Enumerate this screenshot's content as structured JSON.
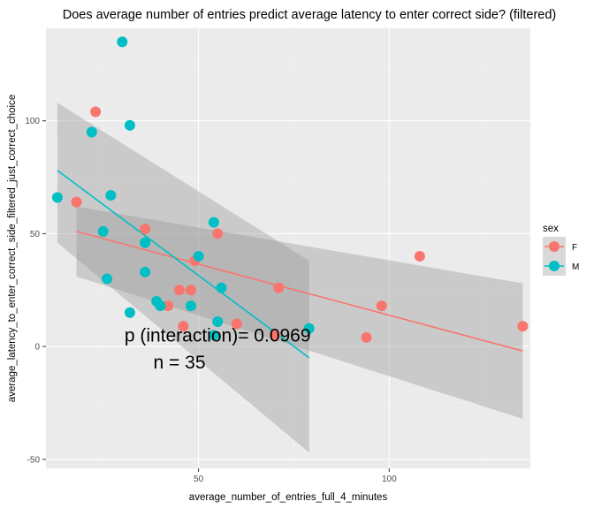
{
  "chart_data": {
    "type": "scatter",
    "title": "Does average number of entries predict average latency to enter correct side? (filtered)",
    "xlabel": "average_number_of_entries_full_4_minutes",
    "ylabel": "average_latency_to_enter_correct_side_filtered_just_correct_choice",
    "xlim": [
      10,
      137
    ],
    "ylim": [
      -54,
      141
    ],
    "x_ticks": [
      50,
      100
    ],
    "y_ticks": [
      -50,
      0,
      50,
      100
    ],
    "grid": true,
    "legend": {
      "title": "sex",
      "position": "right",
      "entries": [
        {
          "label": "F",
          "color": "#F8766D"
        },
        {
          "label": "M",
          "color": "#00BFC4"
        }
      ]
    },
    "series": [
      {
        "name": "F",
        "color": "#F8766D",
        "points": [
          {
            "x": 18,
            "y": 64
          },
          {
            "x": 23,
            "y": 104
          },
          {
            "x": 36,
            "y": 52
          },
          {
            "x": 42,
            "y": 18
          },
          {
            "x": 45,
            "y": 25
          },
          {
            "x": 46,
            "y": 9
          },
          {
            "x": 48,
            "y": 25
          },
          {
            "x": 49,
            "y": 38
          },
          {
            "x": 55,
            "y": 50
          },
          {
            "x": 60,
            "y": 10
          },
          {
            "x": 70,
            "y": 5
          },
          {
            "x": 71,
            "y": 26
          },
          {
            "x": 94,
            "y": 4
          },
          {
            "x": 98,
            "y": 18
          },
          {
            "x": 108,
            "y": 40
          },
          {
            "x": 135,
            "y": 9
          }
        ],
        "fit": {
          "x": [
            18,
            135
          ],
          "y": [
            51,
            -2
          ],
          "ci_upper": [
            62,
            28
          ],
          "ci_lower": [
            31,
            -32
          ]
        }
      },
      {
        "name": "M",
        "color": "#00BFC4",
        "points": [
          {
            "x": 13,
            "y": 66
          },
          {
            "x": 22,
            "y": 95
          },
          {
            "x": 25,
            "y": 51
          },
          {
            "x": 26,
            "y": 30
          },
          {
            "x": 27,
            "y": 67
          },
          {
            "x": 30,
            "y": 135
          },
          {
            "x": 32,
            "y": 98
          },
          {
            "x": 32,
            "y": 15
          },
          {
            "x": 36,
            "y": 46
          },
          {
            "x": 36,
            "y": 33
          },
          {
            "x": 39,
            "y": 20
          },
          {
            "x": 40,
            "y": 18
          },
          {
            "x": 48,
            "y": 18
          },
          {
            "x": 50,
            "y": 40
          },
          {
            "x": 54,
            "y": 55
          },
          {
            "x": 55,
            "y": 11
          },
          {
            "x": 54,
            "y": 5
          },
          {
            "x": 56,
            "y": 26
          },
          {
            "x": 79,
            "y": 8
          }
        ],
        "fit": {
          "x": [
            13,
            79
          ],
          "y": [
            78,
            -5
          ],
          "ci_upper": [
            108,
            38
          ],
          "ci_lower": [
            46,
            -47
          ]
        }
      }
    ],
    "annotations": [
      {
        "text": "p (interaction)= 0.0969",
        "x": 55,
        "y": 5
      },
      {
        "text": "n = 35",
        "x": 45,
        "y": -7
      }
    ]
  }
}
